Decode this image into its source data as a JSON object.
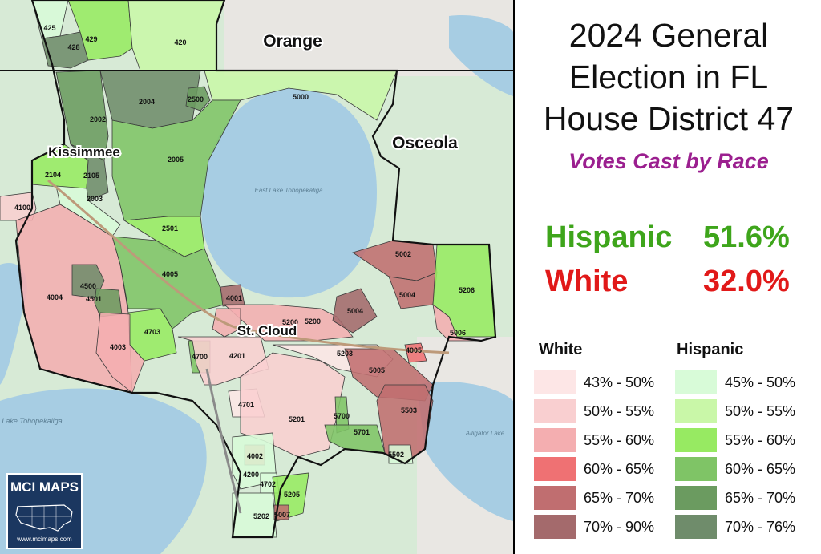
{
  "title_lines": [
    "2024 General",
    "Election in FL",
    "House District 47"
  ],
  "subtitle": "Votes Cast by Race",
  "stats": [
    {
      "label": "Hispanic",
      "value": "51.6%"
    },
    {
      "label": "White",
      "value": "32.0%"
    }
  ],
  "legend": {
    "white_title": "White",
    "hispanic_title": "Hispanic",
    "white": [
      {
        "label": "43% - 50%",
        "color": "#fde6e6"
      },
      {
        "label": "50% - 55%",
        "color": "#f9cfd0"
      },
      {
        "label": "55% - 60%",
        "color": "#f4aeb0"
      },
      {
        "label": "60% - 65%",
        "color": "#ef7173"
      },
      {
        "label": "65% - 70%",
        "color": "#c06e70"
      },
      {
        "label": "70% - 90%",
        "color": "#a46a6c"
      }
    ],
    "hispanic": [
      {
        "label": "45% - 50%",
        "color": "#d8fbd8"
      },
      {
        "label": "50% - 55%",
        "color": "#c9f7a8"
      },
      {
        "label": "55% - 60%",
        "color": "#97ea62"
      },
      {
        "label": "60% - 65%",
        "color": "#7fc466"
      },
      {
        "label": "65% - 70%",
        "color": "#6b9b60"
      },
      {
        "label": "70% - 76%",
        "color": "#6f8c6b"
      }
    ]
  },
  "map": {
    "county_labels": [
      "Orange",
      "Osceola",
      "Kissimmee",
      "St. Cloud"
    ],
    "water_labels": [
      "East Lake Tohopekaliga",
      "Lake Tohopekaliga",
      "Alligator Lake"
    ],
    "precincts": [
      {
        "id": "425",
        "shade": "hispanic",
        "level": 0
      },
      {
        "id": "428",
        "shade": "hispanic",
        "level": 5
      },
      {
        "id": "429",
        "shade": "hispanic",
        "level": 2
      },
      {
        "id": "420",
        "shade": "hispanic",
        "level": 1
      },
      {
        "id": "2002",
        "shade": "hispanic",
        "level": 4
      },
      {
        "id": "2004",
        "shade": "hispanic",
        "level": 5
      },
      {
        "id": "2500",
        "shade": "hispanic",
        "level": 4
      },
      {
        "id": "5000",
        "shade": "hispanic",
        "level": 1
      },
      {
        "id": "2005",
        "shade": "hispanic",
        "level": 3
      },
      {
        "id": "2104",
        "shade": "hispanic",
        "level": 2
      },
      {
        "id": "2105",
        "shade": "hispanic",
        "level": 5
      },
      {
        "id": "2003",
        "shade": "hispanic",
        "level": 0
      },
      {
        "id": "4100",
        "shade": "white",
        "level": 1
      },
      {
        "id": "2501",
        "shade": "hispanic",
        "level": 2
      },
      {
        "id": "4004",
        "shade": "white",
        "level": 2
      },
      {
        "id": "4005",
        "shade": "hispanic",
        "level": 3
      },
      {
        "id": "4500",
        "shade": "hispanic",
        "level": 5
      },
      {
        "id": "4501",
        "shade": "hispanic",
        "level": 4
      },
      {
        "id": "4001",
        "shade": "white",
        "level": 5
      },
      {
        "id": "4703",
        "shade": "hispanic",
        "level": 2
      },
      {
        "id": "4003",
        "shade": "white",
        "level": 2
      },
      {
        "id": "4700",
        "shade": "hispanic",
        "level": 3
      },
      {
        "id": "4201",
        "shade": "white",
        "level": 1
      },
      {
        "id": "4701",
        "shade": "white",
        "level": 0
      },
      {
        "id": "5200",
        "shade": "white",
        "level": 2
      },
      {
        "id": "5203",
        "shade": "white",
        "level": 0
      },
      {
        "id": "5201",
        "shade": "white",
        "level": 1
      },
      {
        "id": "5002",
        "shade": "white",
        "level": 4
      },
      {
        "id": "5004",
        "shade": "white",
        "level": 5
      },
      {
        "id": "5004",
        "shade": "white",
        "level": 4
      },
      {
        "id": "5206",
        "shade": "hispanic",
        "level": 2
      },
      {
        "id": "5006",
        "shade": "white",
        "level": 2
      },
      {
        "id": "4005",
        "shade": "white",
        "level": 3
      },
      {
        "id": "5005",
        "shade": "white",
        "level": 4
      },
      {
        "id": "5503",
        "shade": "white",
        "level": 4
      },
      {
        "id": "5700",
        "shade": "hispanic",
        "level": 3
      },
      {
        "id": "5701",
        "shade": "hispanic",
        "level": 3
      },
      {
        "id": "5502",
        "shade": "hispanic",
        "level": 0
      },
      {
        "id": "4002",
        "shade": "white",
        "level": 3
      },
      {
        "id": "4200",
        "shade": "hispanic",
        "level": 0
      },
      {
        "id": "4702",
        "shade": "hispanic",
        "level": 0
      },
      {
        "id": "5205",
        "shade": "hispanic",
        "level": 2
      },
      {
        "id": "5202",
        "shade": "hispanic",
        "level": 0
      },
      {
        "id": "5007",
        "shade": "white",
        "level": 4
      },
      {
        "id": "5200",
        "shade": "white",
        "level": 2
      }
    ]
  },
  "logo": {
    "text": "MCI MAPS",
    "url": "www.mcimaps.com"
  }
}
